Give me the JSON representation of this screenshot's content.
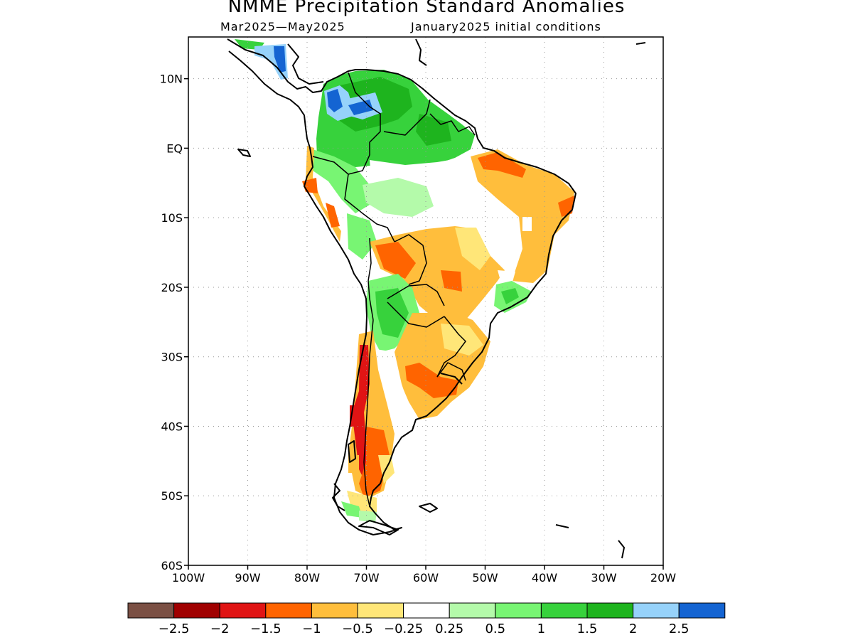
{
  "title": "NMME Precipitation Standard Anomalies",
  "subtitle_left": "Mar2025—May2025",
  "subtitle_right": "January2025 initial conditions",
  "map": {
    "lat_ticks": [
      {
        "value": 10,
        "label": "10N"
      },
      {
        "value": 0,
        "label": "EQ"
      },
      {
        "value": -10,
        "label": "10S"
      },
      {
        "value": -20,
        "label": "20S"
      },
      {
        "value": -30,
        "label": "30S"
      },
      {
        "value": -40,
        "label": "40S"
      },
      {
        "value": -50,
        "label": "50S"
      },
      {
        "value": -60,
        "label": "60S"
      }
    ],
    "lon_ticks": [
      {
        "value": -100,
        "label": "100W"
      },
      {
        "value": -90,
        "label": "90W"
      },
      {
        "value": -80,
        "label": "80W"
      },
      {
        "value": -70,
        "label": "70W"
      },
      {
        "value": -60,
        "label": "60W"
      },
      {
        "value": -50,
        "label": "50W"
      },
      {
        "value": -40,
        "label": "40W"
      },
      {
        "value": -30,
        "label": "30W"
      },
      {
        "value": -20,
        "label": "20W"
      }
    ],
    "lon_range": [
      -100,
      -20
    ],
    "lat_range": [
      -60,
      16
    ],
    "grid": "dotted"
  },
  "colorbar": {
    "colors": [
      "#7b5044",
      "#a00000",
      "#e01414",
      "#ff6400",
      "#ffbe3c",
      "#ffe678",
      "#ffffff",
      "#b4faaa",
      "#78f573",
      "#37d23c",
      "#1eb41e",
      "#96d2fa",
      "#1464d2"
    ],
    "labels": [
      "−2.5",
      "−2",
      "−1.5",
      "−1",
      "−0.5",
      "−0.25",
      "0.25",
      "0.5",
      "1",
      "1.5",
      "2",
      "2.5"
    ]
  }
}
